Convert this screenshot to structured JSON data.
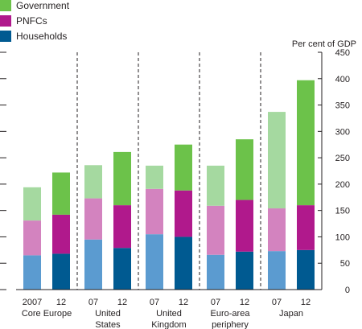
{
  "chart_data": {
    "type": "bar",
    "stacked": true,
    "unit_label": "Per cent of GDP",
    "ylim": [
      0,
      450
    ],
    "yticks": [
      0,
      50,
      100,
      150,
      200,
      250,
      300,
      350,
      400,
      450
    ],
    "legend_placement": "top-left",
    "groups": [
      {
        "name": [
          "Core Europe"
        ],
        "bars": [
          {
            "label": "2007",
            "dark": false
          },
          {
            "label": "12",
            "dark": true
          }
        ]
      },
      {
        "name": [
          "United",
          "States"
        ],
        "bars": [
          {
            "label": "07",
            "dark": false
          },
          {
            "label": "12",
            "dark": true
          }
        ]
      },
      {
        "name": [
          "United",
          "Kingdom"
        ],
        "bars": [
          {
            "label": "07",
            "dark": false
          },
          {
            "label": "12",
            "dark": true
          }
        ]
      },
      {
        "name": [
          "Euro-area",
          "periphery"
        ],
        "bars": [
          {
            "label": "07",
            "dark": false
          },
          {
            "label": "12",
            "dark": true
          }
        ]
      },
      {
        "name": [
          "Japan"
        ],
        "bars": [
          {
            "label": "07",
            "dark": false
          },
          {
            "label": "12",
            "dark": true
          }
        ]
      }
    ],
    "series": [
      {
        "name": "Households",
        "color_dark": "#005a91",
        "color_light": "#5b9bd0",
        "values": [
          65,
          68,
          95,
          79,
          105,
          100,
          66,
          72,
          73,
          75
        ]
      },
      {
        "name": "PNFCs",
        "color_dark": "#b0198c",
        "color_light": "#d383bf",
        "values": [
          66,
          74,
          78,
          81,
          86,
          88,
          93,
          98,
          81,
          85
        ]
      },
      {
        "name": "Government",
        "color_dark": "#6cc24a",
        "color_light": "#a5d9a0",
        "values": [
          63,
          80,
          63,
          101,
          44,
          87,
          76,
          115,
          183,
          237
        ]
      }
    ],
    "legend_order": [
      "Government",
      "PNFCs",
      "Households"
    ]
  }
}
